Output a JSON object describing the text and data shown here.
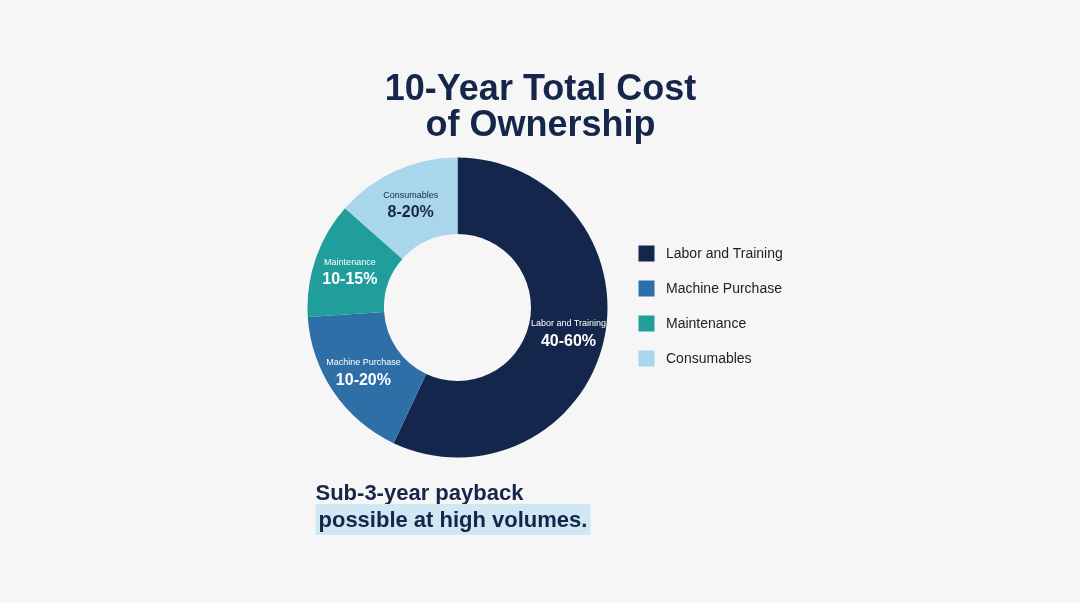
{
  "chart_data": {
    "type": "donut",
    "title": "10-Year Total Cost of Ownership",
    "categories": [
      "Labor and Training",
      "Machine Purchase",
      "Maintenance",
      "Consumables"
    ],
    "values": [
      57,
      17,
      12.5,
      13.5
    ],
    "colors": [
      "#14264b",
      "#2f6fa8",
      "#1f9e9b",
      "#a9d6ea"
    ],
    "legend": "right",
    "annotations": [
      {
        "text": "40-60%",
        "x": "Labor and Training"
      },
      {
        "text": "10-20%",
        "x": "Machine Purchase"
      },
      {
        "text": "10-15%",
        "x": "Maintenance"
      },
      {
        "text": "8-20%",
        "x": "Consumables"
      },
      "Sub-3-year payback possible at high volumes."
    ]
  }
}
